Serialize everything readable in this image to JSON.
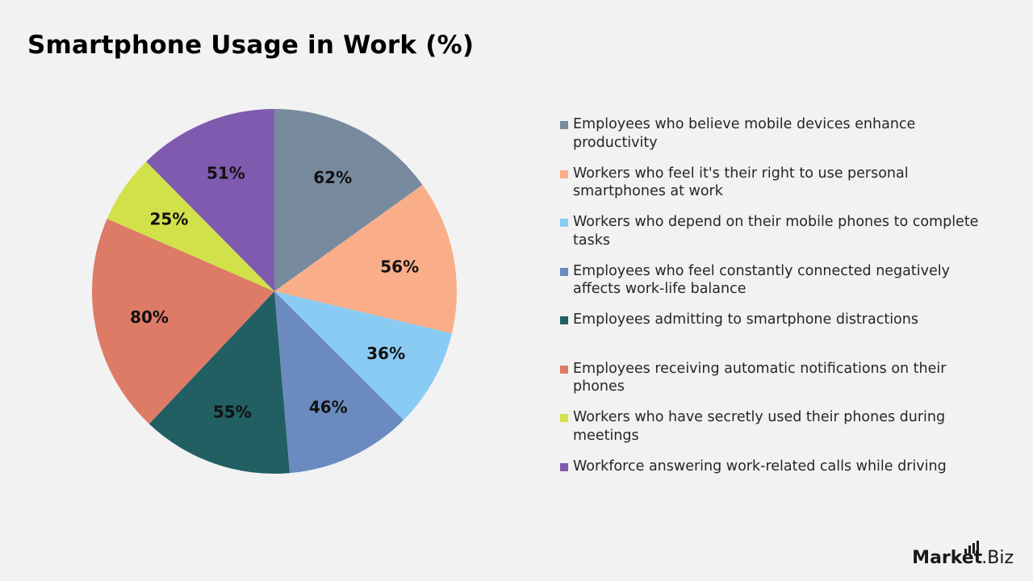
{
  "title": "Smartphone Usage in Work (%)",
  "brand": {
    "name_part1": "Market",
    "name_part2": ".Biz"
  },
  "chart_data": {
    "type": "pie",
    "title": "Smartphone Usage in Work (%)",
    "legend_position": "right",
    "slices": [
      {
        "label": "Employees who believe mobile devices enhance productivity",
        "value": 62,
        "display": "62%",
        "color": "#778a9e"
      },
      {
        "label": "Workers who feel it's their right to use personal smartphones at work",
        "value": 56,
        "display": "56%",
        "color": "#f9ae89"
      },
      {
        "label": "Workers who depend on their mobile phones to complete tasks",
        "value": 36,
        "display": "36%",
        "color": "#8acbf4"
      },
      {
        "label": "Employees who feel constantly connected negatively affects work-life balance",
        "value": 46,
        "display": "46%",
        "color": "#6b8bc0"
      },
      {
        "label": "Employees admitting to smartphone distractions",
        "value": 55,
        "display": "55%",
        "color": "#215f63"
      },
      {
        "label": "Employees receiving automatic notifications on their phones",
        "value": 80,
        "display": "80%",
        "color": "#dd7b67"
      },
      {
        "label": "Workers who have secretly used their phones during meetings",
        "value": 25,
        "display": "25%",
        "color": "#d2e14a"
      },
      {
        "label": "Workforce answering work-related calls while driving",
        "value": 51,
        "display": "51%",
        "color": "#7f5bb0"
      }
    ]
  }
}
